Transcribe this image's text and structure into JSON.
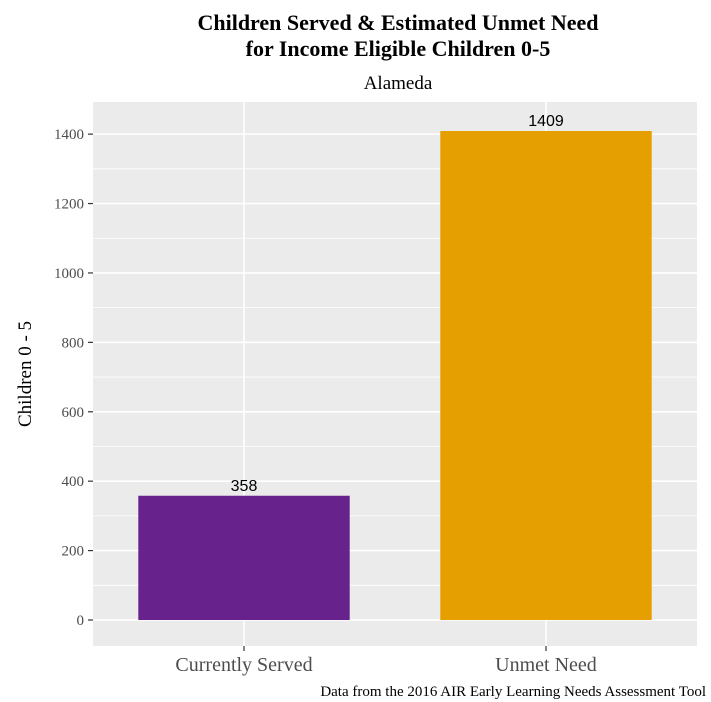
{
  "chart_data": {
    "type": "bar",
    "title": "Children Served & Estimated Unmet Need",
    "title_line2": "for Income Eligible Children 0-5",
    "subtitle": "Alameda",
    "xlabel": "",
    "ylabel": "Children 0 - 5",
    "caption": "Data from the 2016 AIR Early Learning Needs Assessment Tool",
    "categories": [
      "Currently Served",
      "Unmet Need"
    ],
    "values": [
      358,
      1409
    ],
    "data_labels": [
      "358",
      "1409"
    ],
    "colors": [
      "#68228B",
      "#E69F00"
    ],
    "ylim": [
      0,
      1409
    ],
    "yticks": [
      0,
      200,
      400,
      600,
      800,
      1000,
      1200,
      1400
    ],
    "ytick_labels": [
      "0",
      "200",
      "400",
      "600",
      "800",
      "1000",
      "1200",
      "1400"
    ],
    "grid": true,
    "legend": "none",
    "background": "#EBEBEB",
    "grid_color": "#FFFFFF"
  }
}
